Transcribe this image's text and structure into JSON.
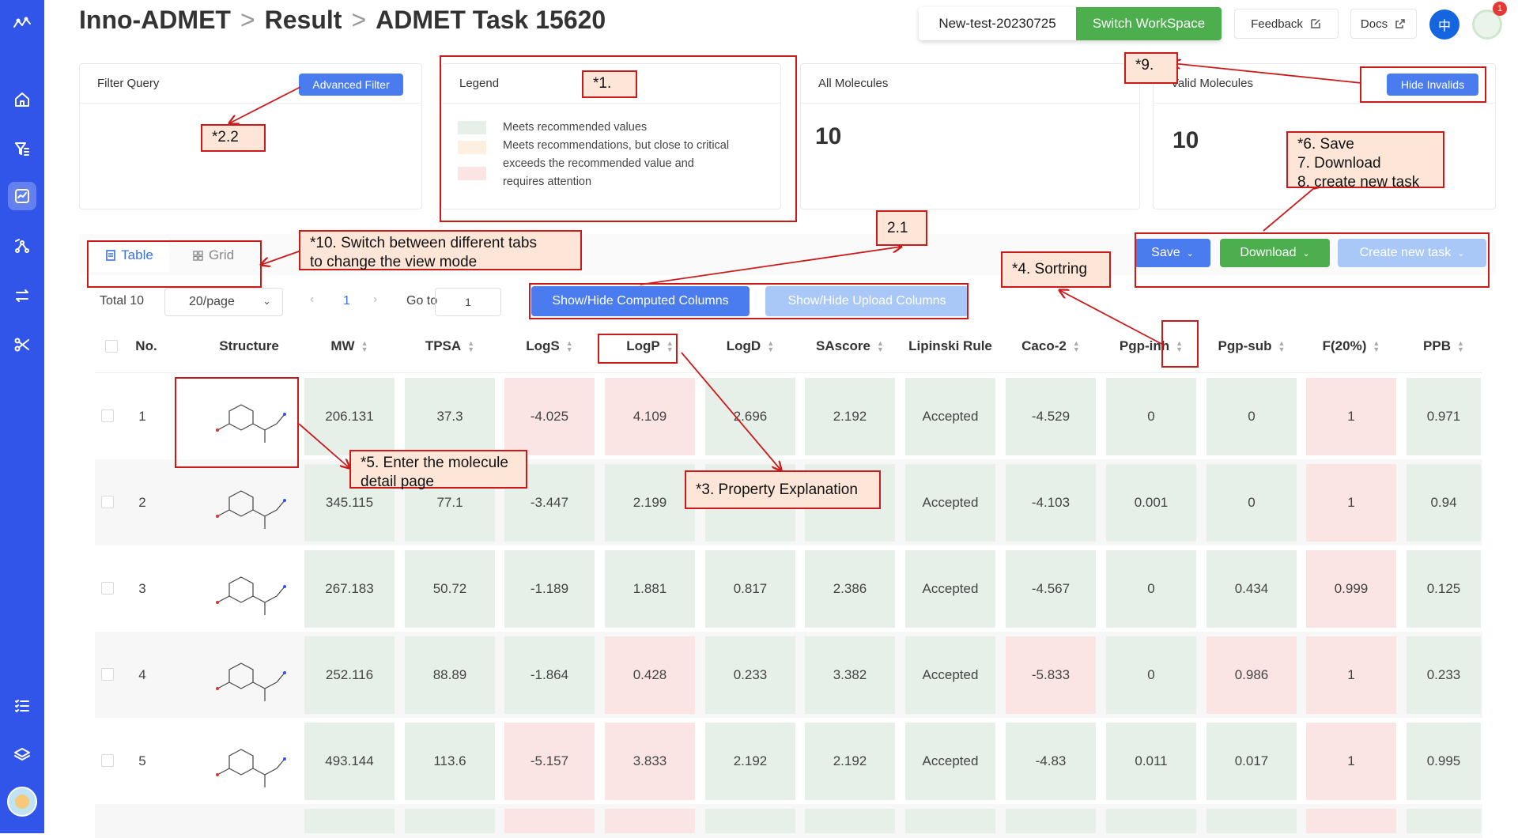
{
  "breadcrumb": {
    "app": "Inno-ADMET",
    "sep1": ">",
    "section": "Result",
    "sep2": ">",
    "task": "ADMET Task 15620"
  },
  "header": {
    "workspace_name": "New-test-20230725",
    "switch_label": "Switch WorkSpace",
    "feedback_label": "Feedback",
    "docs_label": "Docs",
    "lang_label": "中",
    "notification_count": "1"
  },
  "filter_card": {
    "title": "Filter Query",
    "advanced_label": "Advanced Filter"
  },
  "legend_card": {
    "title": "Legend",
    "items": [
      "Meets recommended values",
      "Meets recommendations, but close to critical",
      "exceeds the recommended value and",
      "requires attention"
    ]
  },
  "all_card": {
    "title": "All Molecules",
    "value": "10"
  },
  "valid_card": {
    "title": "Valid Molecules",
    "value": "10",
    "hide_label": "Hide Invalids"
  },
  "view_tabs": {
    "table": "Table",
    "grid": "Grid"
  },
  "pagination": {
    "total": "Total 10",
    "page_size": "20/page",
    "current": "1",
    "goto_label": "Go to",
    "goto_value": "1"
  },
  "toolbar": {
    "computed": "Show/Hide Computed Columns",
    "upload": "Show/Hide Upload Columns",
    "save": "Save",
    "download": "Download",
    "create": "Create new task"
  },
  "columns": [
    "No.",
    "Structure",
    "MW",
    "TPSA",
    "LogS",
    "LogP",
    "LogD",
    "SAscore",
    "Lipinski Rule",
    "Caco-2",
    "Pgp-inh",
    "Pgp-sub",
    "F(20%)",
    "PPB"
  ],
  "rows": [
    {
      "no": "1",
      "values": [
        "206.131",
        "37.3",
        "-4.025",
        "4.109",
        "2.696",
        "2.192",
        "Accepted",
        "-4.529",
        "0",
        "0",
        "1",
        "0.971"
      ],
      "status": [
        "g",
        "g",
        "r",
        "r",
        "g",
        "g",
        "g",
        "g",
        "g",
        "g",
        "r",
        "g"
      ]
    },
    {
      "no": "2",
      "values": [
        "345.115",
        "77.1",
        "-3.447",
        "2.199",
        "",
        "",
        "Accepted",
        "-4.103",
        "0.001",
        "0",
        "1",
        "0.94"
      ],
      "status": [
        "g",
        "g",
        "g",
        "g",
        "g",
        "g",
        "g",
        "g",
        "g",
        "g",
        "r",
        "g"
      ]
    },
    {
      "no": "3",
      "values": [
        "267.183",
        "50.72",
        "-1.189",
        "1.881",
        "0.817",
        "2.386",
        "Accepted",
        "-4.567",
        "0",
        "0.434",
        "0.999",
        "0.125"
      ],
      "status": [
        "g",
        "g",
        "g",
        "g",
        "g",
        "g",
        "g",
        "g",
        "g",
        "g",
        "r",
        "g"
      ]
    },
    {
      "no": "4",
      "values": [
        "252.116",
        "88.89",
        "-1.864",
        "0.428",
        "0.233",
        "3.382",
        "Accepted",
        "-5.833",
        "0",
        "0.986",
        "1",
        "0.233"
      ],
      "status": [
        "g",
        "g",
        "g",
        "r",
        "g",
        "g",
        "g",
        "r",
        "g",
        "r",
        "r",
        "g"
      ]
    },
    {
      "no": "5",
      "values": [
        "493.144",
        "113.6",
        "-5.157",
        "3.833",
        "2.192",
        "2.192",
        "Accepted",
        "-4.83",
        "0.011",
        "0.017",
        "1",
        "0.995"
      ],
      "status": [
        "g",
        "g",
        "r",
        "r",
        "g",
        "g",
        "g",
        "g",
        "g",
        "g",
        "r",
        "g"
      ]
    },
    {
      "no": "",
      "values": [
        "",
        "",
        "",
        "",
        "",
        "",
        "",
        "",
        "",
        "",
        "",
        ""
      ],
      "status": [
        "g",
        "g",
        "r",
        "r",
        "g",
        "g",
        "g",
        "g",
        "g",
        "g",
        "r",
        "g"
      ]
    }
  ],
  "annotations": {
    "a1": "*1.",
    "a22": "*2.2",
    "a9": "*9.",
    "a6": "*6. Save\n7. Download\n8. create new task",
    "a10": "*10. Switch between different tabs\nto change the view mode",
    "a21": "2.1",
    "a4": "*4. Sortring",
    "a5": "*5. Enter the molecule\ndetail page",
    "a3": "*3. Property Explanation"
  },
  "colors": {
    "sidebar": "#3155e8",
    "green_btn": "#4cae4c",
    "blue_btn": "#4a7cf0",
    "cell_green": "#e7f0e8",
    "cell_red": "#fbe4e4",
    "annotation": "#cc1a1a"
  }
}
